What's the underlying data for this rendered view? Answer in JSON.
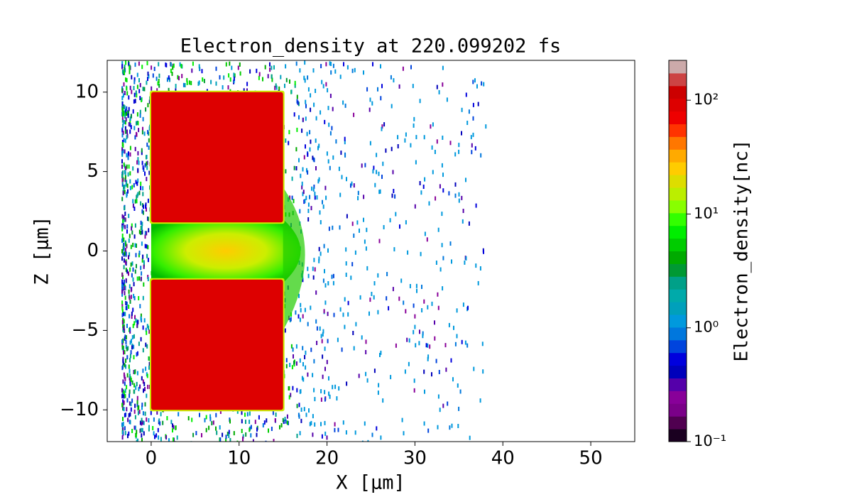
{
  "chart_data": {
    "type": "heatmap",
    "title": "Electron_density at 220.099202 fs",
    "xlabel": "X [μm]",
    "ylabel": "Z [μm]",
    "xlim": [
      -5,
      55
    ],
    "xticks": [
      0,
      10,
      20,
      30,
      40,
      50
    ],
    "ylim": [
      -12,
      12
    ],
    "yticks": [
      {
        "value": -10,
        "label": "−10"
      },
      {
        "value": -5,
        "label": "−5"
      },
      0,
      5,
      10
    ],
    "colorbar": {
      "label": "Electron_density[nc]",
      "scale": "log",
      "lim": [
        0.1,
        224
      ],
      "ticks": [
        {
          "value": 0.1,
          "label": "10⁻¹"
        },
        {
          "value": 1,
          "label": "10⁰"
        },
        {
          "value": 10,
          "label": "10¹"
        },
        {
          "value": 100,
          "label": "10²"
        }
      ],
      "colors": [
        "#1a0020",
        "#500050",
        "#7a0088",
        "#880099",
        "#5500aa",
        "#0000bb",
        "#0000dd",
        "#0044dd",
        "#0077dd",
        "#0099dd",
        "#00a0bb",
        "#00aaaa",
        "#00a088",
        "#009933",
        "#00aa00",
        "#00cc00",
        "#00ee00",
        "#33ff00",
        "#88ff00",
        "#bbee00",
        "#dddd00",
        "#ffcc00",
        "#ffaa00",
        "#ff7700",
        "#ff3300",
        "#ee0000",
        "#dd0000",
        "#cc0000",
        "#cc4444",
        "#ccaaaa"
      ]
    }
  }
}
